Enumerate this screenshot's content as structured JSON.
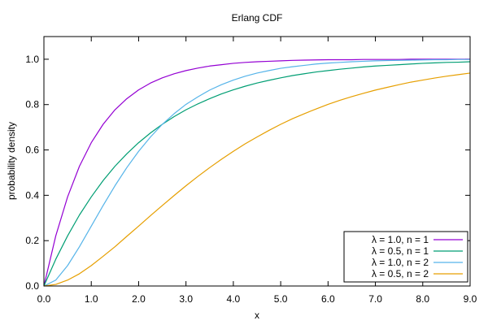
{
  "chart_data": {
    "type": "line",
    "title": "Erlang CDF",
    "xlabel": "x",
    "ylabel": "probability density",
    "xlim": [
      0,
      9
    ],
    "ylim": [
      0,
      1.1
    ],
    "x_ticks": [
      "0.0",
      "1.0",
      "2.0",
      "3.0",
      "4.0",
      "5.0",
      "6.0",
      "7.0",
      "8.0",
      "9.0"
    ],
    "y_ticks": [
      "0.0",
      "0.2",
      "0.4",
      "0.6",
      "0.8",
      "1.0"
    ],
    "x_tick_values": [
      0,
      1,
      2,
      3,
      4,
      5,
      6,
      7,
      8,
      9
    ],
    "y_tick_values": [
      0,
      0.2,
      0.4,
      0.6,
      0.8,
      1.0
    ],
    "grid": false,
    "legend_position": "bottom-right",
    "x": [
      0,
      0.25,
      0.5,
      0.75,
      1.0,
      1.25,
      1.5,
      1.75,
      2.0,
      2.25,
      2.5,
      2.75,
      3.0,
      3.25,
      3.5,
      3.75,
      4.0,
      4.25,
      4.5,
      4.75,
      5.0,
      5.25,
      5.5,
      5.75,
      6.0,
      6.25,
      6.5,
      6.75,
      7.0,
      7.25,
      7.5,
      7.75,
      8.0,
      8.25,
      8.5,
      8.75,
      9.0
    ],
    "series": [
      {
        "name": "λ = 1.0, n = 1",
        "color": "#9400d3",
        "values": [
          0,
          0.221,
          0.393,
          0.528,
          0.632,
          0.713,
          0.777,
          0.826,
          0.865,
          0.895,
          0.918,
          0.936,
          0.95,
          0.961,
          0.97,
          0.976,
          0.982,
          0.986,
          0.989,
          0.991,
          0.993,
          0.995,
          0.996,
          0.997,
          0.998,
          0.998,
          0.998,
          0.999,
          0.999,
          0.999,
          0.999,
          1.0,
          1.0,
          1.0,
          1.0,
          1.0,
          1.0
        ]
      },
      {
        "name": "λ = 0.5, n = 1",
        "color": "#009e73",
        "values": [
          0,
          0.118,
          0.221,
          0.313,
          0.393,
          0.465,
          0.528,
          0.583,
          0.632,
          0.675,
          0.713,
          0.747,
          0.777,
          0.803,
          0.826,
          0.847,
          0.865,
          0.881,
          0.895,
          0.907,
          0.918,
          0.928,
          0.936,
          0.944,
          0.95,
          0.956,
          0.961,
          0.966,
          0.97,
          0.973,
          0.976,
          0.979,
          0.982,
          0.984,
          0.986,
          0.987,
          0.989
        ]
      },
      {
        "name": "λ = 1.0, n = 2",
        "color": "#56b4e9",
        "values": [
          0,
          0.026,
          0.09,
          0.173,
          0.264,
          0.355,
          0.442,
          0.522,
          0.594,
          0.657,
          0.713,
          0.76,
          0.801,
          0.834,
          0.864,
          0.888,
          0.908,
          0.925,
          0.939,
          0.95,
          0.96,
          0.967,
          0.973,
          0.979,
          0.983,
          0.986,
          0.989,
          0.991,
          0.993,
          0.994,
          0.995,
          0.996,
          0.997,
          0.998,
          0.998,
          0.999,
          0.999
        ]
      },
      {
        "name": "λ = 0.5, n = 2",
        "color": "#e69f00",
        "values": [
          0,
          0.007,
          0.026,
          0.054,
          0.09,
          0.131,
          0.173,
          0.219,
          0.264,
          0.31,
          0.355,
          0.399,
          0.442,
          0.483,
          0.522,
          0.559,
          0.594,
          0.627,
          0.657,
          0.686,
          0.713,
          0.738,
          0.76,
          0.781,
          0.801,
          0.819,
          0.835,
          0.85,
          0.864,
          0.876,
          0.888,
          0.899,
          0.908,
          0.917,
          0.925,
          0.932,
          0.939
        ]
      }
    ]
  }
}
